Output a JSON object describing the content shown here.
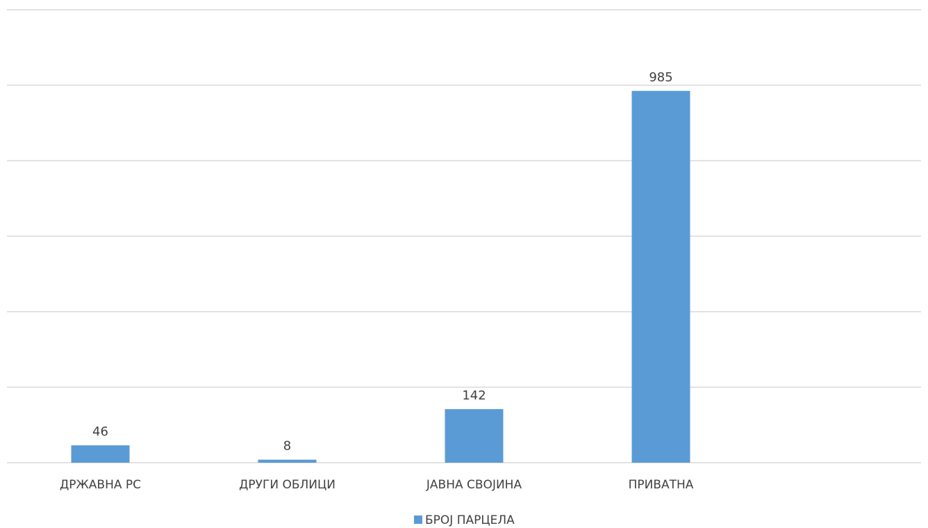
{
  "chart_data": {
    "type": "bar",
    "categories": [
      "ДРЖАВНА РС",
      "ДРУГИ ОБЛИЦИ",
      "ЈАВНА СВОЈИНА",
      "ПРИВАТНА"
    ],
    "series": [
      {
        "name": "БРОЈ ПАРЦЕЛА",
        "values": [
          46,
          8,
          142,
          985
        ],
        "color": "#5b9bd5"
      }
    ],
    "ylim": [
      0,
      1200
    ],
    "y_gridline_step": 200,
    "grid": true,
    "y_tick_labels_visible": false,
    "data_labels": true,
    "legend_position": "bottom",
    "title": "",
    "xlabel": "",
    "ylabel": ""
  }
}
